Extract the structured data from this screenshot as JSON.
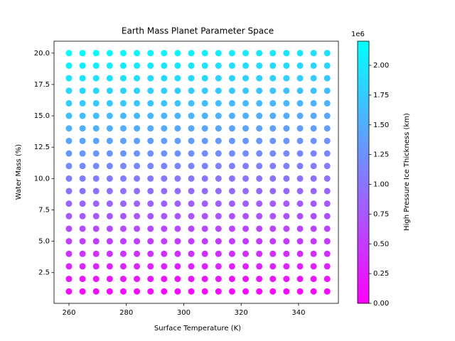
{
  "chart_data": {
    "type": "scatter",
    "title": "Earth Mass Planet Parameter Space",
    "xlabel": "Surface Temperature (K)",
    "ylabel": "Water Mass (%)",
    "colorbar_label": "High Pressure Ice Thickness (km)",
    "colorbar_offset": "1e6",
    "x": [
      260,
      264.74,
      269.47,
      274.21,
      278.95,
      283.68,
      288.42,
      293.16,
      297.89,
      302.63,
      307.37,
      312.11,
      316.84,
      321.58,
      326.32,
      331.05,
      335.79,
      340.53,
      345.26,
      350
    ],
    "y": [
      1,
      2,
      3,
      4,
      5,
      6,
      7,
      8,
      9,
      10,
      11,
      12,
      13,
      14,
      15,
      16,
      17,
      18,
      19,
      20
    ],
    "values": [
      [
        110000,
        109300,
        108600,
        107900,
        107200,
        106500,
        105800,
        105100,
        104400,
        103700,
        103000,
        102300,
        101600,
        100900,
        100200,
        99500,
        98800,
        98100,
        97400,
        96700
      ],
      [
        220000,
        218600,
        217200,
        215800,
        214400,
        213000,
        211600,
        210200,
        208800,
        207400,
        206000,
        204600,
        203200,
        201800,
        200400,
        199000,
        197600,
        196200,
        194800,
        193400
      ],
      [
        330000,
        327900,
        325800,
        323700,
        321600,
        319500,
        317400,
        315300,
        313200,
        311100,
        309000,
        306900,
        304800,
        302700,
        300600,
        298500,
        296400,
        294300,
        292200,
        290100
      ],
      [
        440000,
        437200,
        434400,
        431600,
        428800,
        426000,
        423200,
        420400,
        417600,
        414800,
        412000,
        409200,
        406400,
        403600,
        400800,
        398000,
        395200,
        392400,
        389600,
        386800
      ],
      [
        550000,
        546500,
        543000,
        539500,
        536000,
        532500,
        529000,
        525500,
        522000,
        518500,
        515000,
        511500,
        508000,
        504500,
        501000,
        497500,
        494000,
        490500,
        487000,
        483500
      ],
      [
        660000,
        655800,
        651600,
        647400,
        643200,
        639000,
        634800,
        630600,
        626400,
        622200,
        618000,
        613800,
        609600,
        605400,
        601200,
        597000,
        592800,
        588600,
        584400,
        580200
      ],
      [
        770000,
        765100,
        760200,
        755300,
        750400,
        745500,
        740600,
        735700,
        730800,
        725900,
        721000,
        716100,
        711200,
        706300,
        701400,
        696500,
        691600,
        686700,
        681800,
        676900
      ],
      [
        880000,
        874400,
        868800,
        863200,
        857600,
        852000,
        846400,
        840800,
        835200,
        829600,
        824000,
        818400,
        812800,
        807200,
        801600,
        796000,
        790400,
        784800,
        779200,
        773600
      ],
      [
        990000,
        983700,
        977400,
        971100,
        964800,
        958500,
        952200,
        945900,
        939600,
        933300,
        927000,
        920700,
        914400,
        908100,
        901800,
        895500,
        889200,
        882900,
        876600,
        870300
      ],
      [
        1100000,
        1093000,
        1086000,
        1079000,
        1072000,
        1065000,
        1058000,
        1051000,
        1044000,
        1037000,
        1030000,
        1023000,
        1016000,
        1009000,
        1002000,
        995000,
        988000,
        981000,
        974000,
        967000
      ],
      [
        1210000,
        1202300,
        1194600,
        1186900,
        1179200,
        1171500,
        1163800,
        1156100,
        1148400,
        1140700,
        1133000,
        1125300,
        1117600,
        1109900,
        1102200,
        1094500,
        1086800,
        1079100,
        1071400,
        1063700
      ],
      [
        1320000,
        1311600,
        1303200,
        1294800,
        1286400,
        1278000,
        1269600,
        1261200,
        1252800,
        1244400,
        1236000,
        1227600,
        1219200,
        1210800,
        1202400,
        1194000,
        1185600,
        1177200,
        1168800,
        1160400
      ],
      [
        1430000,
        1420900,
        1411800,
        1402700,
        1393600,
        1384500,
        1375400,
        1366300,
        1357200,
        1348100,
        1339000,
        1329900,
        1320800,
        1311700,
        1302600,
        1293500,
        1284400,
        1275300,
        1266200,
        1257100
      ],
      [
        1540000,
        1530200,
        1520400,
        1510600,
        1500800,
        1491000,
        1481200,
        1471400,
        1461600,
        1451800,
        1442000,
        1432200,
        1422400,
        1412600,
        1402800,
        1393000,
        1383200,
        1373400,
        1363600,
        1353800
      ],
      [
        1650000,
        1639500,
        1629000,
        1618500,
        1608000,
        1597500,
        1587000,
        1576500,
        1566000,
        1555500,
        1545000,
        1534500,
        1524000,
        1513500,
        1503000,
        1492500,
        1482000,
        1471500,
        1461000,
        1450500
      ],
      [
        1760000,
        1748800,
        1737600,
        1726400,
        1715200,
        1704000,
        1692800,
        1681600,
        1670400,
        1659200,
        1648000,
        1636800,
        1625600,
        1614400,
        1603200,
        1592000,
        1580800,
        1569600,
        1558400,
        1547200
      ],
      [
        1870000,
        1858100,
        1846200,
        1834300,
        1822400,
        1810500,
        1798600,
        1786700,
        1774800,
        1762900,
        1751000,
        1739100,
        1727200,
        1715300,
        1703400,
        1691500,
        1679600,
        1667700,
        1655800,
        1643900
      ],
      [
        1980000,
        1967400,
        1954800,
        1942200,
        1929600,
        1917000,
        1904400,
        1891800,
        1879200,
        1866600,
        1854000,
        1841400,
        1828800,
        1816200,
        1803600,
        1791000,
        1778400,
        1765800,
        1753200,
        1740600
      ],
      [
        2090000,
        2076700,
        2063400,
        2050100,
        2036800,
        2023500,
        2010200,
        1996900,
        1983600,
        1970300,
        1957000,
        1943700,
        1930400,
        1917100,
        1903800,
        1890500,
        1877200,
        1863900,
        1850600,
        1837300
      ],
      [
        2200000,
        2186000,
        2172000,
        2158000,
        2144000,
        2130000,
        2116000,
        2102000,
        2088000,
        2074000,
        2060000,
        2046000,
        2032000,
        2018000,
        2004000,
        1990000,
        1976000,
        1962000,
        1948000,
        1934000
      ]
    ],
    "colormap": [
      "#ff00ff",
      "#00ffff"
    ],
    "xlim": [
      254.8,
      353.9
    ],
    "xticks": [
      260,
      280,
      300,
      320,
      340
    ],
    "ylim": [
      0.05,
      20.95
    ],
    "yticks": [
      {
        "value": 2.5,
        "label": "2.5"
      },
      {
        "value": 5,
        "label": "5.0"
      },
      {
        "value": 7.5,
        "label": "7.5"
      },
      {
        "value": 10,
        "label": "10.0"
      },
      {
        "value": 12.5,
        "label": "12.5"
      },
      {
        "value": 15,
        "label": "15.0"
      },
      {
        "value": 17.5,
        "label": "17.5"
      },
      {
        "value": 20,
        "label": "20.0"
      }
    ],
    "clim": [
      0,
      2203000
    ],
    "cticks": [
      {
        "value": 0,
        "label": "0.00"
      },
      {
        "value": 250000,
        "label": "0.25"
      },
      {
        "value": 500000,
        "label": "0.50"
      },
      {
        "value": 750000,
        "label": "0.75"
      },
      {
        "value": 1000000,
        "label": "1.00"
      },
      {
        "value": 1250000,
        "label": "1.25"
      },
      {
        "value": 1500000,
        "label": "1.50"
      },
      {
        "value": 1750000,
        "label": "1.75"
      },
      {
        "value": 2000000,
        "label": "2.00"
      }
    ],
    "grid": false
  }
}
